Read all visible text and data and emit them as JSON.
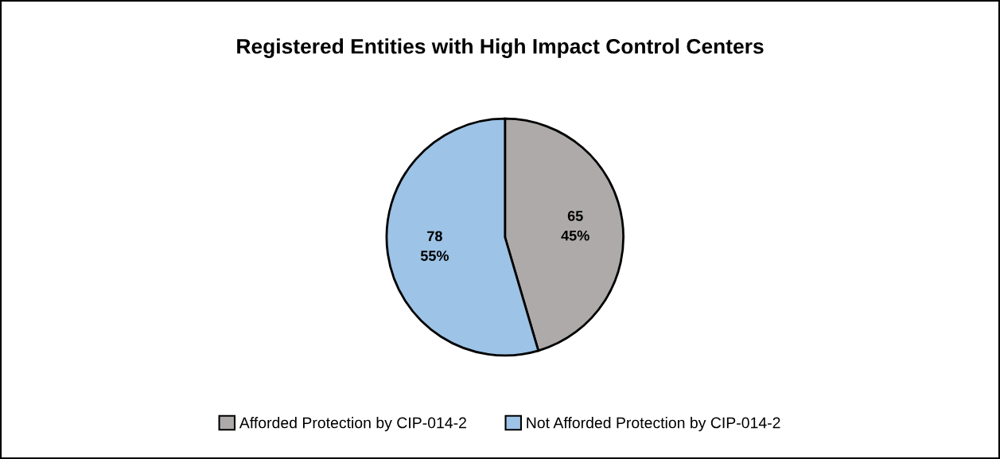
{
  "chart_data": {
    "type": "pie",
    "title": "Registered Entities with High Impact Control Centers",
    "categories": [
      "Afforded Protection by CIP-014-2",
      "Not Afforded Protection by CIP-014-2"
    ],
    "values": [
      65,
      78
    ],
    "colors": [
      "#aeaaaa",
      "#9dc3e6"
    ],
    "value_labels": [
      "65\n45%",
      "78\n55%"
    ],
    "legend": "bottom"
  }
}
